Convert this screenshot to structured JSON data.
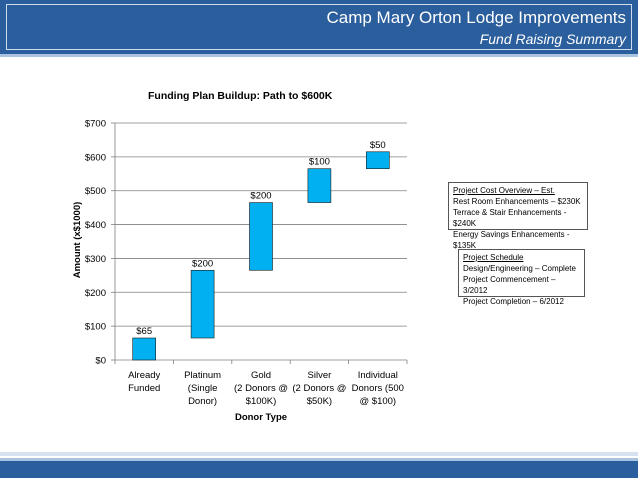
{
  "header": {
    "title": "Camp Mary Orton Lodge Improvements",
    "subtitle": "Fund Raising Summary"
  },
  "chart_data": {
    "type": "bar",
    "subtype": "waterfall",
    "title": "Funding Plan Buildup:  Path to $600K",
    "xlabel": "Donor Type",
    "ylabel": "Amount (x$1000)",
    "ylim": [
      0,
      700
    ],
    "yticks": [
      "$0",
      "$100",
      "$200",
      "$300",
      "$400",
      "$500",
      "$600",
      "$700"
    ],
    "grid": true,
    "bar_color": "#00b0f0",
    "categories": [
      [
        "Already",
        "Funded"
      ],
      [
        "Platinum",
        "(Single",
        "Donor)"
      ],
      [
        "Gold",
        "(2 Donors @",
        "$100K)"
      ],
      [
        "Silver",
        "(2 Donors @",
        "$50K)"
      ],
      [
        "Individual",
        "Donors (500",
        "@ $100)"
      ]
    ],
    "values": [
      65,
      200,
      200,
      100,
      50
    ],
    "bases": [
      0,
      65,
      265,
      465,
      565
    ],
    "data_labels": [
      "$65",
      "$200",
      "$200",
      "$100",
      "$50"
    ]
  },
  "cost_box": {
    "heading": "Project Cost Overview – Est.",
    "lines": [
      "Rest Room Enhancements – $230K",
      "Terrace & Stair Enhancements - $240K",
      "Energy Savings Enhancements - $135K"
    ]
  },
  "schedule_box": {
    "heading": "Project Schedule",
    "lines": [
      "Design/Engineering – Complete",
      "Project Commencement – 3/2012",
      "Project Completion – 6/2012"
    ]
  }
}
